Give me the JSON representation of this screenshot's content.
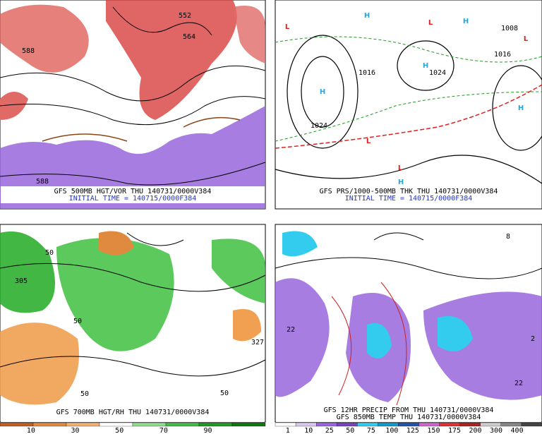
{
  "panels": [
    {
      "caption": [
        "GFS 500MB HGT/VOR THU 140731/0000V384",
        "INITIAL TIME = 140715/0000F384"
      ],
      "labels": [
        "588",
        "552",
        "564",
        "588"
      ]
    },
    {
      "caption": [
        "GFS PRS/1000-500MB THK THU 140731/0000V384",
        "INITIAL TIME = 140715/0000F384"
      ],
      "labels": [
        "L",
        "H",
        "L",
        "H",
        "L",
        "H",
        "H",
        "H",
        "L",
        "L",
        "H",
        "1024",
        "1016",
        "1008",
        "1016",
        "1024"
      ]
    },
    {
      "caption": [
        "GFS 700MB HGT/RH THU 140731/0000V384"
      ],
      "labels": [
        "305",
        "50",
        "50",
        "327",
        "50",
        "50"
      ]
    },
    {
      "caption": [
        "GFS 12HR PRECIP FROM THU 140731/0000V384",
        "GFS 850MB TEMP THU 140731/0000V384"
      ],
      "labels": [
        "22",
        "8",
        "2",
        "22"
      ]
    }
  ],
  "colorbars": [
    {
      "labels": [
        "10",
        "30",
        "50",
        "70",
        "90"
      ]
    },
    {
      "labels": [
        "1",
        "10",
        "25",
        "50",
        "75",
        "100",
        "125",
        "150",
        "175",
        "200",
        "300",
        "400"
      ]
    }
  ]
}
